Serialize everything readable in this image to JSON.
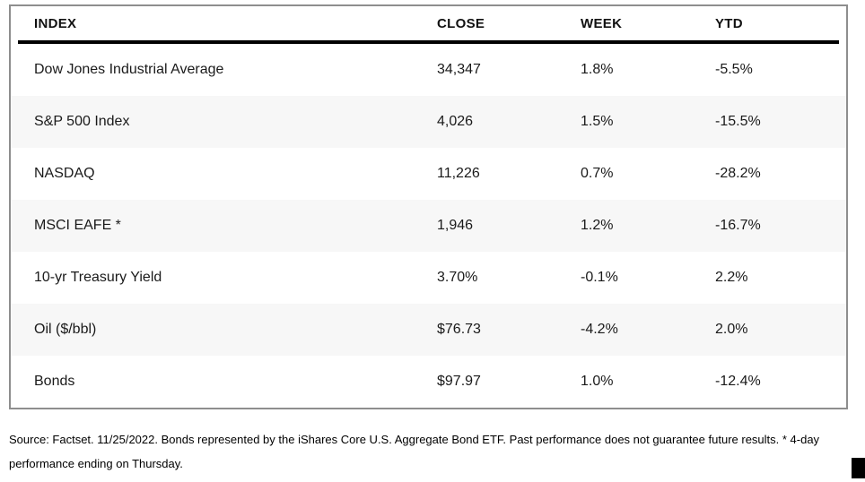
{
  "chart_data": {
    "type": "table",
    "columns": [
      "INDEX",
      "CLOSE",
      "WEEK",
      "YTD"
    ],
    "rows": [
      {
        "index": "Dow Jones Industrial Average",
        "close": "34,347",
        "week": "1.8%",
        "ytd": "-5.5%"
      },
      {
        "index": "S&P 500 Index",
        "close": "4,026",
        "week": "1.5%",
        "ytd": "-15.5%"
      },
      {
        "index": "NASDAQ",
        "close": "11,226",
        "week": "0.7%",
        "ytd": "-28.2%"
      },
      {
        "index": "MSCI EAFE *",
        "close": "1,946",
        "week": "1.2%",
        "ytd": "-16.7%"
      },
      {
        "index": "10-yr Treasury Yield",
        "close": "3.70%",
        "week": "-0.1%",
        "ytd": "2.2%"
      },
      {
        "index": "Oil ($/bbl)",
        "close": "$76.73",
        "week": "-4.2%",
        "ytd": "2.0%"
      },
      {
        "index": "Bonds",
        "close": "$97.97",
        "week": "1.0%",
        "ytd": "-12.4%"
      }
    ]
  },
  "footnote": {
    "lines": [
      "Source: Factset. 11/25/2022. Bonds represented by the iShares Core U.S. Aggregate Bond ETF. Past performance does not guarantee future results. * 4-day",
      "performance ending on Thursday."
    ]
  },
  "colors": {
    "row_alt_background": "#f7f7f7",
    "header_rule": "#000000",
    "table_border": "#8e8e8e",
    "end_marker": "#000000",
    "text": "#111111"
  }
}
